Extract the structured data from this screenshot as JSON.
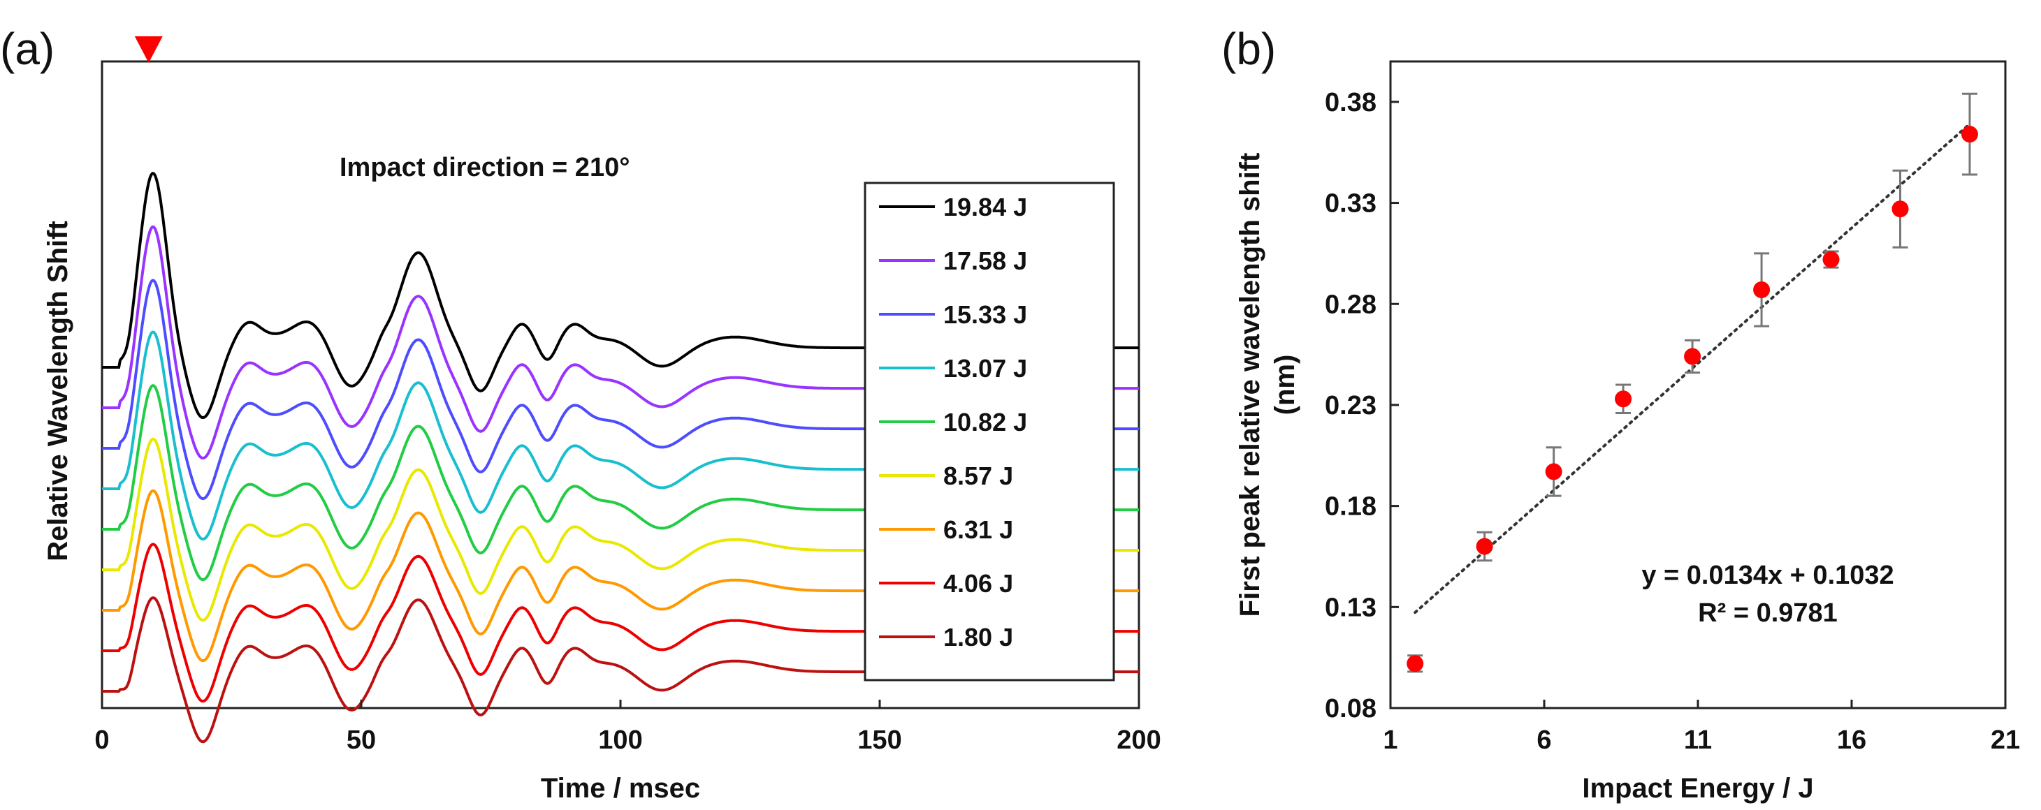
{
  "chart_data": [
    {
      "panel": "(a)",
      "type": "line",
      "title": "",
      "xlabel": "Time / msec",
      "ylabel": "Relative Wavelength Shift",
      "xlim": [
        0,
        200
      ],
      "xticks": [
        0,
        50,
        100,
        150,
        200
      ],
      "annotation": "Impact direction = 210°",
      "marker": {
        "type": "triangle-down",
        "x": 9,
        "color": "#ff0000"
      },
      "series": [
        {
          "name": "19.84 J",
          "color": "#000000",
          "offset": 8.0,
          "scale": 1.0
        },
        {
          "name": "17.58 J",
          "color": "#9933ff",
          "offset": 7.0,
          "scale": 0.93
        },
        {
          "name": "15.33 J",
          "color": "#4d4dff",
          "offset": 6.0,
          "scale": 0.86
        },
        {
          "name": "13.07 J",
          "color": "#19bfcf",
          "offset": 5.0,
          "scale": 0.8
        },
        {
          "name": "10.82 J",
          "color": "#22cc44",
          "offset": 4.0,
          "scale": 0.73
        },
        {
          "name": "8.57 J",
          "color": "#e8e800",
          "offset": 3.0,
          "scale": 0.66
        },
        {
          "name": "6.31 J",
          "color": "#ff9900",
          "offset": 2.0,
          "scale": 0.6
        },
        {
          "name": "4.06 J",
          "color": "#ee0000",
          "offset": 1.0,
          "scale": 0.53
        },
        {
          "name": "1.80 J",
          "color": "#bb1111",
          "offset": 0.0,
          "scale": 0.46
        }
      ]
    },
    {
      "panel": "(b)",
      "type": "scatter",
      "title": "",
      "xlabel": "Impact Energy / J",
      "ylabel": "First peak relative wavelength shift (nm)",
      "ylabel_lines": [
        "First peak relative wavelength shift",
        "(nm)"
      ],
      "xlim": [
        1,
        21
      ],
      "ylim": [
        0.08,
        0.4
      ],
      "xticks": [
        1,
        6,
        11,
        16,
        21
      ],
      "yticks": [
        "0.08",
        "0.13",
        "0.18",
        "0.23",
        "0.28",
        "0.33",
        "0.38"
      ],
      "x": [
        1.8,
        4.06,
        6.31,
        8.57,
        10.82,
        13.07,
        15.33,
        17.58,
        19.84
      ],
      "y": [
        0.102,
        0.16,
        0.197,
        0.233,
        0.254,
        0.287,
        0.302,
        0.327,
        0.364
      ],
      "yerr": [
        0.004,
        0.007,
        0.012,
        0.007,
        0.008,
        0.018,
        0.004,
        0.019,
        0.02
      ],
      "point_color": "#ff0000",
      "trendline": {
        "slope": 0.0134,
        "intercept": 0.1032,
        "x_range": [
          1.8,
          19.84
        ]
      },
      "equation": "y = 0.0134x + 0.1032",
      "r_squared": "R² = 0.9781"
    }
  ]
}
